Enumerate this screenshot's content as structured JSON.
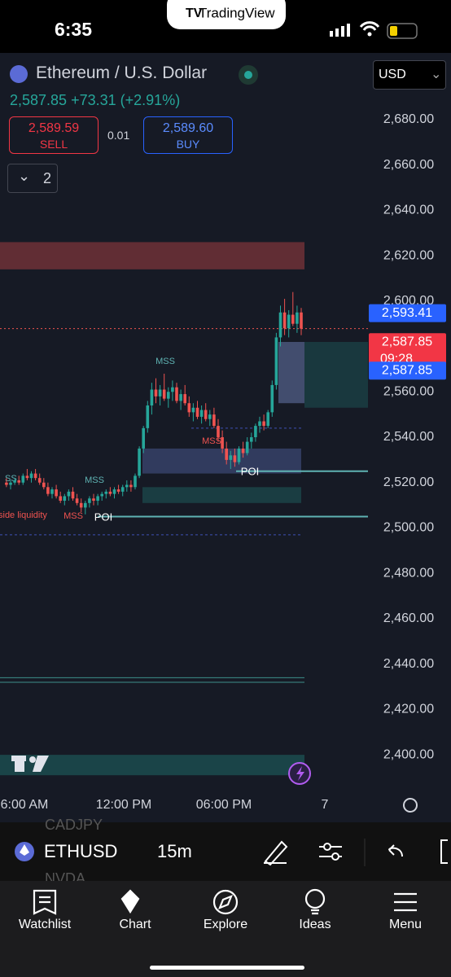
{
  "status_bar": {
    "time": "6:35",
    "app": "TradingView"
  },
  "header": {
    "symbol_name": "Ethereum / U.S. Dollar",
    "price": "2,587.85",
    "change": "+73.31 (+2.91%)",
    "sell_price": "2,589.59",
    "sell_label": "SELL",
    "spread": "0.01",
    "buy_price": "2,589.60",
    "buy_label": "BUY",
    "indicators_count": "2",
    "currency": "USD"
  },
  "chart_data": {
    "type": "candlestick",
    "ylim": [
      2386.4,
      2709.4
    ],
    "yticks": [
      {
        "value": 2680,
        "label": "2,680.00"
      },
      {
        "value": 2660,
        "label": "2,660.00"
      },
      {
        "value": 2640,
        "label": "2,640.00"
      },
      {
        "value": 2620,
        "label": "2,620.00"
      },
      {
        "value": 2600,
        "label": "2,600.00"
      },
      {
        "value": 2580,
        "label": "2,580.00"
      },
      {
        "value": 2560,
        "label": "2,560.00"
      },
      {
        "value": 2540,
        "label": "2,540.00"
      },
      {
        "value": 2520,
        "label": "2,520.00"
      },
      {
        "value": 2500,
        "label": "2,500.00"
      },
      {
        "value": 2480,
        "label": "2,480.00"
      },
      {
        "value": 2460,
        "label": "2,460.00"
      },
      {
        "value": 2440,
        "label": "2,440.00"
      },
      {
        "value": 2420,
        "label": "2,420.00"
      },
      {
        "value": 2400,
        "label": "2,400.00"
      }
    ],
    "xtick_labels": [
      "6:00 AM",
      "12:00 PM",
      "06:00 PM",
      "7"
    ],
    "up_color": "#26a69a",
    "down_color": "#ef5350",
    "candles": [
      [
        2520,
        2522,
        2518,
        2519
      ],
      [
        2519,
        2521,
        2517,
        2520
      ],
      [
        2520,
        2522,
        2519,
        2521
      ],
      [
        2521,
        2523,
        2519,
        2520
      ],
      [
        2520,
        2524,
        2519,
        2523
      ],
      [
        2523,
        2526,
        2521,
        2522
      ],
      [
        2522,
        2525,
        2520,
        2524
      ],
      [
        2524,
        2526,
        2521,
        2522
      ],
      [
        2522,
        2524,
        2519,
        2520
      ],
      [
        2520,
        2522,
        2517,
        2518
      ],
      [
        2518,
        2520,
        2514,
        2515
      ],
      [
        2515,
        2518,
        2513,
        2517
      ],
      [
        2517,
        2519,
        2513,
        2514
      ],
      [
        2514,
        2516,
        2511,
        2512
      ],
      [
        2512,
        2515,
        2510,
        2514
      ],
      [
        2514,
        2517,
        2512,
        2516
      ],
      [
        2516,
        2518,
        2512,
        2513
      ],
      [
        2513,
        2515,
        2510,
        2511
      ],
      [
        2511,
        2513,
        2507,
        2509
      ],
      [
        2509,
        2512,
        2506,
        2511
      ],
      [
        2511,
        2514,
        2509,
        2513
      ],
      [
        2513,
        2515,
        2510,
        2512
      ],
      [
        2512,
        2515,
        2510,
        2514
      ],
      [
        2514,
        2516,
        2512,
        2515
      ],
      [
        2515,
        2517,
        2513,
        2516
      ],
      [
        2516,
        2518,
        2514,
        2515
      ],
      [
        2515,
        2518,
        2513,
        2517
      ],
      [
        2517,
        2519,
        2515,
        2516
      ],
      [
        2516,
        2519,
        2514,
        2518
      ],
      [
        2518,
        2521,
        2516,
        2519
      ],
      [
        2519,
        2521,
        2516,
        2518
      ],
      [
        2518,
        2524,
        2517,
        2523
      ],
      [
        2523,
        2536,
        2522,
        2535
      ],
      [
        2535,
        2545,
        2533,
        2544
      ],
      [
        2544,
        2556,
        2542,
        2554
      ],
      [
        2554,
        2564,
        2550,
        2561
      ],
      [
        2561,
        2566,
        2555,
        2558
      ],
      [
        2558,
        2563,
        2554,
        2561
      ],
      [
        2561,
        2568,
        2556,
        2557
      ],
      [
        2557,
        2562,
        2553,
        2560
      ],
      [
        2560,
        2565,
        2556,
        2562
      ],
      [
        2562,
        2564,
        2555,
        2556
      ],
      [
        2556,
        2561,
        2552,
        2559
      ],
      [
        2559,
        2563,
        2554,
        2555
      ],
      [
        2555,
        2558,
        2549,
        2551
      ],
      [
        2551,
        2555,
        2547,
        2553
      ],
      [
        2553,
        2556,
        2548,
        2549
      ],
      [
        2549,
        2554,
        2546,
        2552
      ],
      [
        2552,
        2555,
        2547,
        2548
      ],
      [
        2548,
        2552,
        2545,
        2550
      ],
      [
        2550,
        2553,
        2544,
        2545
      ],
      [
        2545,
        2548,
        2538,
        2540
      ],
      [
        2540,
        2543,
        2533,
        2535
      ],
      [
        2535,
        2538,
        2528,
        2530
      ],
      [
        2530,
        2534,
        2526,
        2532
      ],
      [
        2532,
        2535,
        2527,
        2529
      ],
      [
        2529,
        2536,
        2528,
        2535
      ],
      [
        2535,
        2538,
        2531,
        2533
      ],
      [
        2533,
        2540,
        2532,
        2538
      ],
      [
        2538,
        2542,
        2535,
        2540
      ],
      [
        2540,
        2546,
        2538,
        2545
      ],
      [
        2545,
        2549,
        2542,
        2547
      ],
      [
        2547,
        2550,
        2543,
        2545
      ],
      [
        2545,
        2552,
        2544,
        2551
      ],
      [
        2551,
        2565,
        2549,
        2563
      ],
      [
        2563,
        2586,
        2561,
        2584
      ],
      [
        2584,
        2598,
        2580,
        2595
      ],
      [
        2595,
        2601,
        2585,
        2588
      ],
      [
        2588,
        2596,
        2584,
        2594
      ],
      [
        2594,
        2604,
        2589,
        2590
      ],
      [
        2590,
        2598,
        2586,
        2595
      ],
      [
        2595,
        2597,
        2585,
        2587.85
      ]
    ],
    "zones": [
      {
        "low": 2614,
        "high": 2626,
        "color": "rgba(239,83,80,0.35)"
      },
      {
        "low": 2555,
        "high": 2582,
        "color": "rgba(120,140,200,0.45)"
      },
      {
        "low": 2553,
        "high": 2582,
        "color": "rgba(38,166,154,0.22)"
      },
      {
        "low": 2524,
        "high": 2535,
        "color": "rgba(90,110,180,0.4)"
      },
      {
        "low": 2511,
        "high": 2518,
        "color": "rgba(38,166,154,0.25)"
      },
      {
        "low": 2391,
        "high": 2400,
        "color": "rgba(38,166,154,0.3)"
      }
    ],
    "levels": [
      {
        "value": 2525,
        "color": "#5fb3b3"
      },
      {
        "value": 2505,
        "color": "#5fb3b3"
      },
      {
        "value": 2434,
        "color": "#3d8f8a"
      },
      {
        "value": 2432,
        "color": "#3d8f8a"
      },
      {
        "value": 2544,
        "color": "#3f51b5"
      },
      {
        "value": 2497,
        "color": "#3f51b5"
      },
      {
        "value": 2587.85,
        "color": "#ef5350"
      }
    ],
    "annotations": [
      "MSS",
      "MSS",
      "POI",
      "POI",
      "MSS",
      "MSS",
      "SS",
      "side liquidity"
    ],
    "price_labels": [
      {
        "value": 2593.41,
        "label": "2,593.41",
        "color": "#2962ff"
      },
      {
        "value": 2587.85,
        "label": "2,587.85",
        "color": "#f23645"
      },
      {
        "value": 2587.85,
        "label": "2,587.85",
        "color": "#2962ff"
      }
    ],
    "countdown": "09:28"
  },
  "toolbar": {
    "symbol": "ETHUSD",
    "interval": "15m",
    "ghost_1": "CADJPY",
    "ghost_2": "NVDA"
  },
  "tabs": [
    "Watchlist",
    "Chart",
    "Explore",
    "Ideas",
    "Menu"
  ]
}
